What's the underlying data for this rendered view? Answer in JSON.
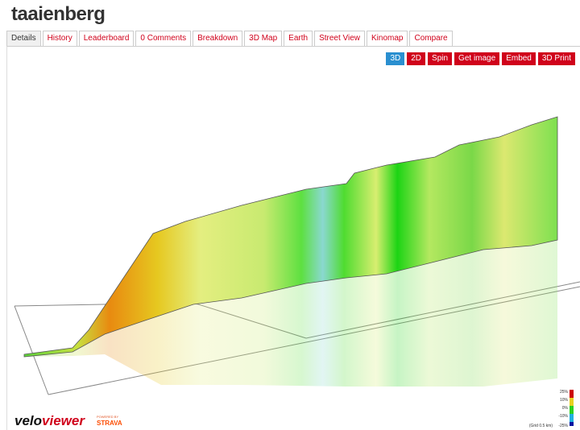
{
  "header": {
    "title": "taaienberg"
  },
  "tabs": [
    "Details",
    "History",
    "Leaderboard",
    "0 Comments",
    "Breakdown",
    "3D Map",
    "Earth",
    "Street View",
    "Kinomap",
    "Compare"
  ],
  "toolbar": [
    "3D",
    "2D",
    "Spin",
    "Get image",
    "Embed",
    "3D Print"
  ],
  "legend": {
    "labels": [
      "25%",
      "10%",
      "0%",
      "-10%",
      "-25%"
    ],
    "grid_note": "(Grid 0.5 km)"
  },
  "logo": {
    "first": "velo",
    "second": "viewer",
    "powered": "POWERED BY",
    "strava": "STRAVA"
  }
}
